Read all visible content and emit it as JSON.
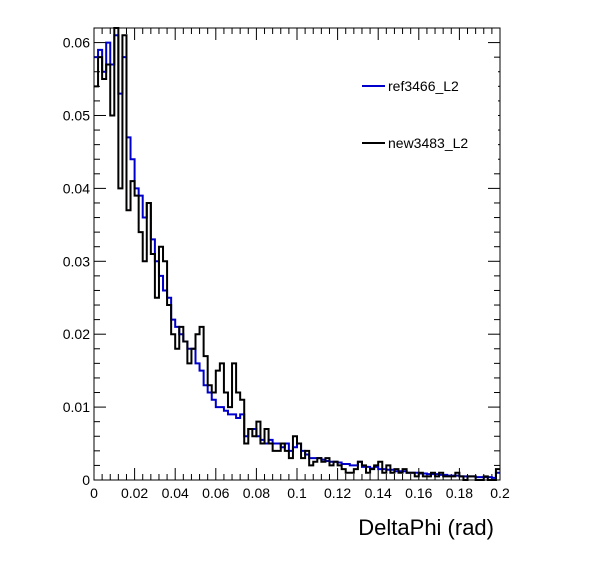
{
  "chart_data": {
    "type": "line",
    "style": "step-histogram",
    "xlabel": "DeltaPhi (rad)",
    "ylabel": "",
    "xlim": [
      0,
      0.2
    ],
    "ylim": [
      0,
      0.062
    ],
    "bin_width": 0.002,
    "x_ticks": [
      "0",
      "0.02",
      "0.04",
      "0.06",
      "0.08",
      "0.1",
      "0.12",
      "0.14",
      "0.16",
      "0.18",
      "0.2"
    ],
    "x_tick_values": [
      0,
      0.02,
      0.04,
      0.06,
      0.08,
      0.1,
      0.12,
      0.14,
      0.16,
      0.18,
      0.2
    ],
    "y_ticks": [
      "0",
      "0.01",
      "0.02",
      "0.03",
      "0.04",
      "0.05",
      "0.06"
    ],
    "y_tick_values": [
      0,
      0.01,
      0.02,
      0.03,
      0.04,
      0.05,
      0.06
    ],
    "grid": false,
    "legend_position": "top-right",
    "series": [
      {
        "name": "ref3466_L2",
        "color": "#0000cc",
        "values": [
          0.058,
          0.059,
          0.056,
          0.06,
          0.057,
          0.061,
          0.053,
          0.058,
          0.047,
          0.044,
          0.04,
          0.039,
          0.036,
          0.038,
          0.033,
          0.03,
          0.028,
          0.026,
          0.025,
          0.022,
          0.021,
          0.02,
          0.019,
          0.018,
          0.018,
          0.016,
          0.015,
          0.013,
          0.012,
          0.011,
          0.01,
          0.01,
          0.0095,
          0.009,
          0.009,
          0.0085,
          0.009,
          0.006,
          0.007,
          0.007,
          0.006,
          0.0055,
          0.005,
          0.0055,
          0.005,
          0.005,
          0.0045,
          0.005,
          0.004,
          0.0045,
          0.005,
          0.004,
          0.0035,
          0.003,
          0.003,
          0.003,
          0.0028,
          0.0026,
          0.0025,
          0.0025,
          0.0024,
          0.0022,
          0.0022,
          0.002,
          0.002,
          0.0025,
          0.0018,
          0.0018,
          0.0016,
          0.0018,
          0.0015,
          0.0015,
          0.0014,
          0.0014,
          0.0012,
          0.0012,
          0.0012,
          0.001,
          0.001,
          0.001,
          0.0009,
          0.0009,
          0.0008,
          0.0008,
          0.0008,
          0.0007,
          0.0007,
          0.0006,
          0.0006,
          0.0006,
          0.0005,
          0.0005,
          0.0005,
          0.0005,
          0.0004,
          0.0004,
          0.0004,
          0.0004,
          0.0003,
          0.001
        ]
      },
      {
        "name": "new3483_L2",
        "color": "#000000",
        "values": [
          0.054,
          0.058,
          0.055,
          0.057,
          0.05,
          0.063,
          0.04,
          0.061,
          0.037,
          0.041,
          0.039,
          0.034,
          0.03,
          0.038,
          0.031,
          0.025,
          0.032,
          0.03,
          0.024,
          0.02,
          0.018,
          0.021,
          0.019,
          0.016,
          0.018,
          0.02,
          0.021,
          0.017,
          0.013,
          0.012,
          0.015,
          0.016,
          0.012,
          0.01,
          0.016,
          0.012,
          0.011,
          0.005,
          0.007,
          0.006,
          0.008,
          0.005,
          0.007,
          0.005,
          0.004,
          0.004,
          0.005,
          0.004,
          0.003,
          0.006,
          0.005,
          0.003,
          0.004,
          0.002,
          0.0025,
          0.003,
          0.0025,
          0.003,
          0.002,
          0.0025,
          0.002,
          0.0015,
          0.001,
          0.001,
          0.0015,
          0.0025,
          0.002,
          0.001,
          0.0015,
          0.002,
          0.0025,
          0.001,
          0.002,
          0.001,
          0.0015,
          0.001,
          0.0015,
          0.001,
          0.001,
          0.0005,
          0.001,
          0.0005,
          0.0005,
          0.001,
          0.0005,
          0.001,
          0.0005,
          0.0005,
          0.0005,
          0.001,
          0.0005,
          0.0,
          0.0005,
          0.0005,
          0.0,
          0.0,
          0.0005,
          0.0,
          0.0,
          0.0015
        ]
      }
    ]
  }
}
